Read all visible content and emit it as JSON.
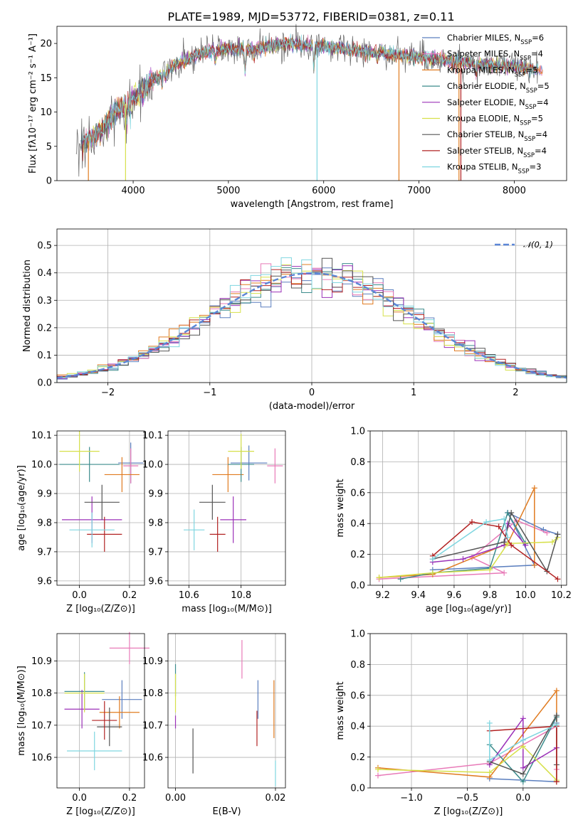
{
  "figure": {
    "title": "PLATE=1989, MJD=53772, FIBERID=0381, z=0.11"
  },
  "chart_data": [
    {
      "id": "spectrum",
      "type": "line",
      "xlabel": "wavelength [Angstrom, rest frame]",
      "ylabel": "Flux [fλ10⁻¹⁷ erg cm⁻² s⁻¹ A⁻¹]",
      "xlim": [
        3200,
        8550
      ],
      "ylim": [
        0,
        22.5
      ],
      "xticks": [
        "4000",
        "5000",
        "6000",
        "7000",
        "8000"
      ],
      "yticks": [
        "0",
        "5",
        "10",
        "15",
        "20"
      ],
      "grid": false,
      "legend_placement": "upper right",
      "continuum": {
        "x": [
          3400,
          3500,
          3600,
          3700,
          3800,
          3900,
          4000,
          4100,
          4200,
          4300,
          4400,
          4500,
          4600,
          4700,
          4800,
          4900,
          5000,
          5200,
          5400,
          5600,
          5800,
          6000,
          6200,
          6400,
          6600,
          6800,
          7000,
          7200,
          7400,
          7600,
          7800,
          8000,
          8200,
          8300
        ],
        "y": [
          4.5,
          5.5,
          6.5,
          8.0,
          10.0,
          11.0,
          12.0,
          13.2,
          14.5,
          15.5,
          16.5,
          17.3,
          18.0,
          18.5,
          18.8,
          19.0,
          19.2,
          19.1,
          19.5,
          20.0,
          19.8,
          19.6,
          19.2,
          18.9,
          18.6,
          18.3,
          18.0,
          17.7,
          17.3,
          17.0,
          16.8,
          16.6,
          16.3,
          16.0
        ]
      },
      "series": [
        {
          "name": "Chabrier MILES, N_SSP=6",
          "color": "#5b7fbf"
        },
        {
          "name": "Salpeter MILES, N_SSP=4",
          "color": "#e87ab8"
        },
        {
          "name": "Kroupa MILES, N_SSP=5",
          "color": "#e07b20"
        },
        {
          "name": "Chabrier ELODIE, N_SSP=5",
          "color": "#3c8c8c"
        },
        {
          "name": "Salpeter ELODIE, N_SSP=4",
          "color": "#9b30b8"
        },
        {
          "name": "Kroupa ELODIE, N_SSP=5",
          "color": "#d6e04a"
        },
        {
          "name": "Chabrier STELIB, N_SSP=4",
          "color": "#555555"
        },
        {
          "name": "Salpeter STELIB, N_SSP=4",
          "color": "#b22222"
        },
        {
          "name": "Kroupa STELIB, N_SSP=3",
          "color": "#7fd6e0"
        }
      ],
      "legend": [
        {
          "prefix": "Chabrier MILES, N",
          "sub": "SSP",
          "suffix": "=6"
        },
        {
          "prefix": "Salpeter MILES, N",
          "sub": "SSP",
          "suffix": "=4"
        },
        {
          "prefix": "Kroupa MILES, N",
          "sub": "SSP",
          "suffix": "=5"
        },
        {
          "prefix": "Chabrier ELODIE, N",
          "sub": "SSP",
          "suffix": "=5"
        },
        {
          "prefix": "Salpeter ELODIE, N",
          "sub": "SSP",
          "suffix": "=4"
        },
        {
          "prefix": "Kroupa ELODIE, N",
          "sub": "SSP",
          "suffix": "=5"
        },
        {
          "prefix": "Chabrier STELIB, N",
          "sub": "SSP",
          "suffix": "=4"
        },
        {
          "prefix": "Salpeter STELIB, N",
          "sub": "SSP",
          "suffix": "=4"
        },
        {
          "prefix": "Kroupa STELIB, N",
          "sub": "SSP",
          "suffix": "=3"
        }
      ],
      "dropouts": [
        {
          "x": 3530,
          "color": "#e07b20"
        },
        {
          "x": 3920,
          "color": "#d6e04a"
        },
        {
          "x": 5930,
          "color": "#7fd6e0"
        },
        {
          "x": 6790,
          "color": "#e07b20"
        },
        {
          "x": 7420,
          "color": "#e07b20"
        },
        {
          "x": 7440,
          "color": "#b22222"
        }
      ]
    },
    {
      "id": "residuals",
      "type": "step",
      "xlabel": "(data-model)/error",
      "ylabel": "Normed distribution",
      "xlim": [
        -2.5,
        2.5
      ],
      "ylim": [
        0,
        0.56
      ],
      "xticks": [
        "−2",
        "−1",
        "0",
        "1",
        "2"
      ],
      "yticks": [
        "0.0",
        "0.1",
        "0.2",
        "0.3",
        "0.4",
        "0.5"
      ],
      "grid": true,
      "legend_placement": "upper right",
      "gaussian_label": "𝒩(0, 1)",
      "gaussian_color": "#5b86d6",
      "bin_width": 0.1
    },
    {
      "id": "age-vs-Z",
      "type": "errorbar",
      "xlabel": "Z [log₁₀(Z/Z⊙)]",
      "ylabel": "age  [log₁₀(age/yr)]",
      "xlim": [
        -0.09,
        0.26
      ],
      "ylim": [
        9.585,
        10.115
      ],
      "xticks": [
        "0.0",
        "0.2"
      ],
      "yticks": [
        "9.6",
        "9.7",
        "9.8",
        "9.9",
        "10.0",
        "10.1"
      ],
      "grid": true,
      "points": [
        {
          "x": 0.205,
          "y": 10.005,
          "xerr": 0.05,
          "yerr": 0.07,
          "color": "#5b7fbf"
        },
        {
          "x": 0.205,
          "y": 9.995,
          "xerr": 0.03,
          "yerr": 0.06,
          "color": "#e87ab8"
        },
        {
          "x": 0.17,
          "y": 9.965,
          "xerr": 0.07,
          "yerr": 0.06,
          "color": "#e07b20"
        },
        {
          "x": 0.04,
          "y": 10.0,
          "xerr": 0.12,
          "yerr": 0.06,
          "color": "#3c8c8c"
        },
        {
          "x": 0.05,
          "y": 9.81,
          "xerr": 0.12,
          "yerr": 0.08,
          "color": "#9b30b8"
        },
        {
          "x": 0.0,
          "y": 10.045,
          "xerr": 0.08,
          "yerr": 0.07,
          "color": "#d6e04a"
        },
        {
          "x": 0.09,
          "y": 9.87,
          "xerr": 0.07,
          "yerr": 0.06,
          "color": "#555555"
        },
        {
          "x": 0.1,
          "y": 9.76,
          "xerr": 0.07,
          "yerr": 0.06,
          "color": "#b22222"
        },
        {
          "x": 0.05,
          "y": 9.775,
          "xerr": 0.09,
          "yerr": 0.06,
          "color": "#7fd6e0"
        }
      ]
    },
    {
      "id": "age-vs-mass",
      "type": "errorbar",
      "xlabel": "mass [log₁₀(M/M⊙)]",
      "ylabel": "",
      "xlim": [
        10.52,
        10.97
      ],
      "ylim": [
        9.585,
        10.115
      ],
      "xticks": [
        "10.6",
        "10.8"
      ],
      "yticks": [
        "9.6",
        "9.7",
        "9.8",
        "9.9",
        "10.0",
        "10.1"
      ],
      "grid": true,
      "points": [
        {
          "x": 10.83,
          "y": 10.005,
          "xerr": 0.07,
          "yerr": 0.06,
          "color": "#5b7fbf"
        },
        {
          "x": 10.93,
          "y": 9.995,
          "xerr": 0.03,
          "yerr": 0.06,
          "color": "#e87ab8"
        },
        {
          "x": 10.75,
          "y": 9.965,
          "xerr": 0.06,
          "yerr": 0.06,
          "color": "#e07b20"
        },
        {
          "x": 10.8,
          "y": 10.0,
          "xerr": 0.05,
          "yerr": 0.06,
          "color": "#3c8c8c"
        },
        {
          "x": 10.77,
          "y": 9.81,
          "xerr": 0.05,
          "yerr": 0.08,
          "color": "#9b30b8"
        },
        {
          "x": 10.8,
          "y": 10.045,
          "xerr": 0.05,
          "yerr": 0.06,
          "color": "#d6e04a"
        },
        {
          "x": 10.69,
          "y": 9.87,
          "xerr": 0.05,
          "yerr": 0.06,
          "color": "#555555"
        },
        {
          "x": 10.71,
          "y": 9.76,
          "xerr": 0.03,
          "yerr": 0.06,
          "color": "#b22222"
        },
        {
          "x": 10.62,
          "y": 9.775,
          "xerr": 0.04,
          "yerr": 0.07,
          "color": "#7fd6e0"
        }
      ]
    },
    {
      "id": "massweight-vs-age",
      "type": "line",
      "xlabel": "age  [log₁₀(age/yr)]",
      "ylabel": "mass weight",
      "xlim": [
        9.13,
        10.23
      ],
      "ylim": [
        0,
        1
      ],
      "xticks": [
        "9.2",
        "9.4",
        "9.6",
        "9.8",
        "10.0",
        "10.2"
      ],
      "yticks": [
        "0.0",
        "0.2",
        "0.4",
        "0.6",
        "0.8",
        "1.0"
      ],
      "grid": true,
      "series": [
        {
          "color": "#5b7fbf",
          "x": [
            9.48,
            10.05,
            9.9,
            10.1,
            10.18
          ],
          "y": [
            0.1,
            0.13,
            0.47,
            0.36,
            0.33
          ]
        },
        {
          "color": "#e87ab8",
          "x": [
            9.18,
            9.88,
            9.7,
            9.95,
            10.12
          ],
          "y": [
            0.04,
            0.08,
            0.18,
            0.42,
            0.34
          ]
        },
        {
          "color": "#e07b20",
          "x": [
            9.18,
            9.48,
            9.9,
            10.05,
            10.05
          ],
          "y": [
            0.05,
            0.07,
            0.27,
            0.63,
            0.13
          ]
        },
        {
          "color": "#3c8c8c",
          "x": [
            9.3,
            9.48,
            9.8,
            9.9,
            10.0
          ],
          "y": [
            0.04,
            0.08,
            0.11,
            0.47,
            0.27
          ]
        },
        {
          "color": "#9b30b8",
          "x": [
            9.48,
            9.65,
            9.88,
            9.9,
            10.0
          ],
          "y": [
            0.15,
            0.17,
            0.26,
            0.4,
            0.26
          ]
        },
        {
          "color": "#d6e04a",
          "x": [
            9.18,
            9.48,
            9.8,
            9.9,
            10.15,
            10.18
          ],
          "y": [
            0.05,
            0.08,
            0.1,
            0.27,
            0.28,
            0.31
          ]
        },
        {
          "color": "#555555",
          "x": [
            9.48,
            9.88,
            9.92,
            10.12,
            10.18
          ],
          "y": [
            0.17,
            0.28,
            0.47,
            0.09,
            0.33
          ]
        },
        {
          "color": "#b22222",
          "x": [
            9.48,
            9.7,
            9.85,
            9.92,
            10.18
          ],
          "y": [
            0.19,
            0.41,
            0.38,
            0.26,
            0.04
          ]
        },
        {
          "color": "#7fd6e0",
          "x": [
            9.48,
            9.78,
            9.88,
            9.9
          ],
          "y": [
            0.17,
            0.41,
            0.43,
            0.31
          ]
        }
      ]
    },
    {
      "id": "mass-vs-Z",
      "type": "errorbar",
      "xlabel": "Z [log₁₀(Z/Z⊙)]",
      "ylabel": "mass [log₁₀(M/M⊙)]",
      "xlim": [
        -0.09,
        0.26
      ],
      "ylim": [
        10.505,
        10.985
      ],
      "xticks": [
        "0.0",
        "0.2"
      ],
      "yticks": [
        "10.6",
        "10.7",
        "10.8",
        "10.9"
      ],
      "grid": true,
      "points": [
        {
          "x": 0.17,
          "y": 10.78,
          "xerr": 0.08,
          "yerr": 0.06,
          "color": "#5b7fbf"
        },
        {
          "x": 0.2,
          "y": 10.94,
          "xerr": 0.08,
          "yerr": 0.05,
          "color": "#e87ab8"
        },
        {
          "x": 0.16,
          "y": 10.74,
          "xerr": 0.08,
          "yerr": 0.05,
          "color": "#e07b20"
        },
        {
          "x": 0.02,
          "y": 10.805,
          "xerr": 0.08,
          "yerr": 0.06,
          "color": "#3c8c8c"
        },
        {
          "x": 0.01,
          "y": 10.75,
          "xerr": 0.07,
          "yerr": 0.06,
          "color": "#9b30b8"
        },
        {
          "x": 0.02,
          "y": 10.8,
          "xerr": 0.08,
          "yerr": 0.06,
          "color": "#d6e04a"
        },
        {
          "x": 0.12,
          "y": 10.695,
          "xerr": 0.05,
          "yerr": 0.06,
          "color": "#555555"
        },
        {
          "x": 0.1,
          "y": 10.715,
          "xerr": 0.05,
          "yerr": 0.06,
          "color": "#b22222"
        },
        {
          "x": 0.06,
          "y": 10.62,
          "xerr": 0.11,
          "yerr": 0.06,
          "color": "#7fd6e0"
        }
      ]
    },
    {
      "id": "mass-vs-ebv",
      "type": "errorbar",
      "xlabel": "E(B-V)",
      "ylabel": "",
      "xlim": [
        -0.0015,
        0.022
      ],
      "ylim": [
        10.505,
        10.985
      ],
      "xticks": [
        "0.00",
        "0.02"
      ],
      "yticks": [
        "10.6",
        "10.7",
        "10.8",
        "10.9"
      ],
      "grid": true,
      "points": [
        {
          "x": 0.0165,
          "y": 10.78,
          "xerr": 0,
          "yerr": 0.06,
          "color": "#5b7fbf"
        },
        {
          "x": 0.0133,
          "y": 10.905,
          "xerr": 0,
          "yerr": 0.06,
          "color": "#e87ab8"
        },
        {
          "x": 0.0197,
          "y": 10.75,
          "xerr": 0,
          "yerr": 0.09,
          "color": "#e07b20"
        },
        {
          "x": 0.0,
          "y": 10.84,
          "xerr": 0,
          "yerr": 0.05,
          "color": "#3c8c8c"
        },
        {
          "x": 0.0,
          "y": 10.71,
          "xerr": 0,
          "yerr": 0.02,
          "color": "#9b30b8"
        },
        {
          "x": 0.0,
          "y": 10.8,
          "xerr": 0,
          "yerr": 0.06,
          "color": "#d6e04a"
        },
        {
          "x": 0.0035,
          "y": 10.62,
          "xerr": 0,
          "yerr": 0.07,
          "color": "#555555"
        },
        {
          "x": 0.0163,
          "y": 10.69,
          "xerr": 0,
          "yerr": 0.055,
          "color": "#b22222"
        },
        {
          "x": 0.02,
          "y": 10.55,
          "xerr": 0,
          "yerr": 0.04,
          "color": "#7fd6e0"
        }
      ]
    },
    {
      "id": "massweight-vs-Z",
      "type": "line",
      "xlabel": "Z [log₁₀(Z/Z⊙)]",
      "ylabel": "mass weight",
      "xlim": [
        -1.37,
        0.39
      ],
      "ylim": [
        0,
        1
      ],
      "xticks": [
        "−1.0",
        "−0.5",
        "0.0"
      ],
      "yticks": [
        "0.0",
        "0.2",
        "0.4",
        "0.6",
        "0.8",
        "1.0"
      ],
      "grid": true,
      "series": [
        {
          "color": "#5b7fbf",
          "x": [
            -0.3,
            0.3,
            0.3
          ],
          "y": [
            0.06,
            0.04,
            0.42
          ]
        },
        {
          "color": "#e87ab8",
          "x": [
            -1.3,
            -0.3,
            0.3,
            0.3
          ],
          "y": [
            0.08,
            0.16,
            0.4,
            0.12
          ]
        },
        {
          "color": "#e07b20",
          "x": [
            -1.3,
            -0.3,
            0.3,
            0.3
          ],
          "y": [
            0.13,
            0.07,
            0.63,
            0.04
          ]
        },
        {
          "color": "#3c8c8c",
          "x": [
            -0.3,
            0.0,
            0.3
          ],
          "y": [
            0.28,
            0.04,
            0.46
          ]
        },
        {
          "color": "#9b30b8",
          "x": [
            -0.3,
            0.0,
            0.0,
            0.3
          ],
          "y": [
            0.15,
            0.45,
            0.13,
            0.26
          ]
        },
        {
          "color": "#d6e04a",
          "x": [
            -1.3,
            -0.3,
            0.0,
            0.3
          ],
          "y": [
            0.12,
            0.1,
            0.27,
            0.05
          ]
        },
        {
          "color": "#555555",
          "x": [
            -0.3,
            0.0,
            0.3,
            0.3
          ],
          "y": [
            0.17,
            0.09,
            0.47,
            0.15
          ]
        },
        {
          "color": "#b22222",
          "x": [
            -0.3,
            0.3,
            0.3
          ],
          "y": [
            0.37,
            0.4,
            0.04
          ]
        },
        {
          "color": "#7fd6e0",
          "x": [
            -0.3,
            -0.3,
            0.0,
            0.3
          ],
          "y": [
            0.42,
            0.18,
            0.31,
            0.41
          ]
        }
      ]
    }
  ]
}
